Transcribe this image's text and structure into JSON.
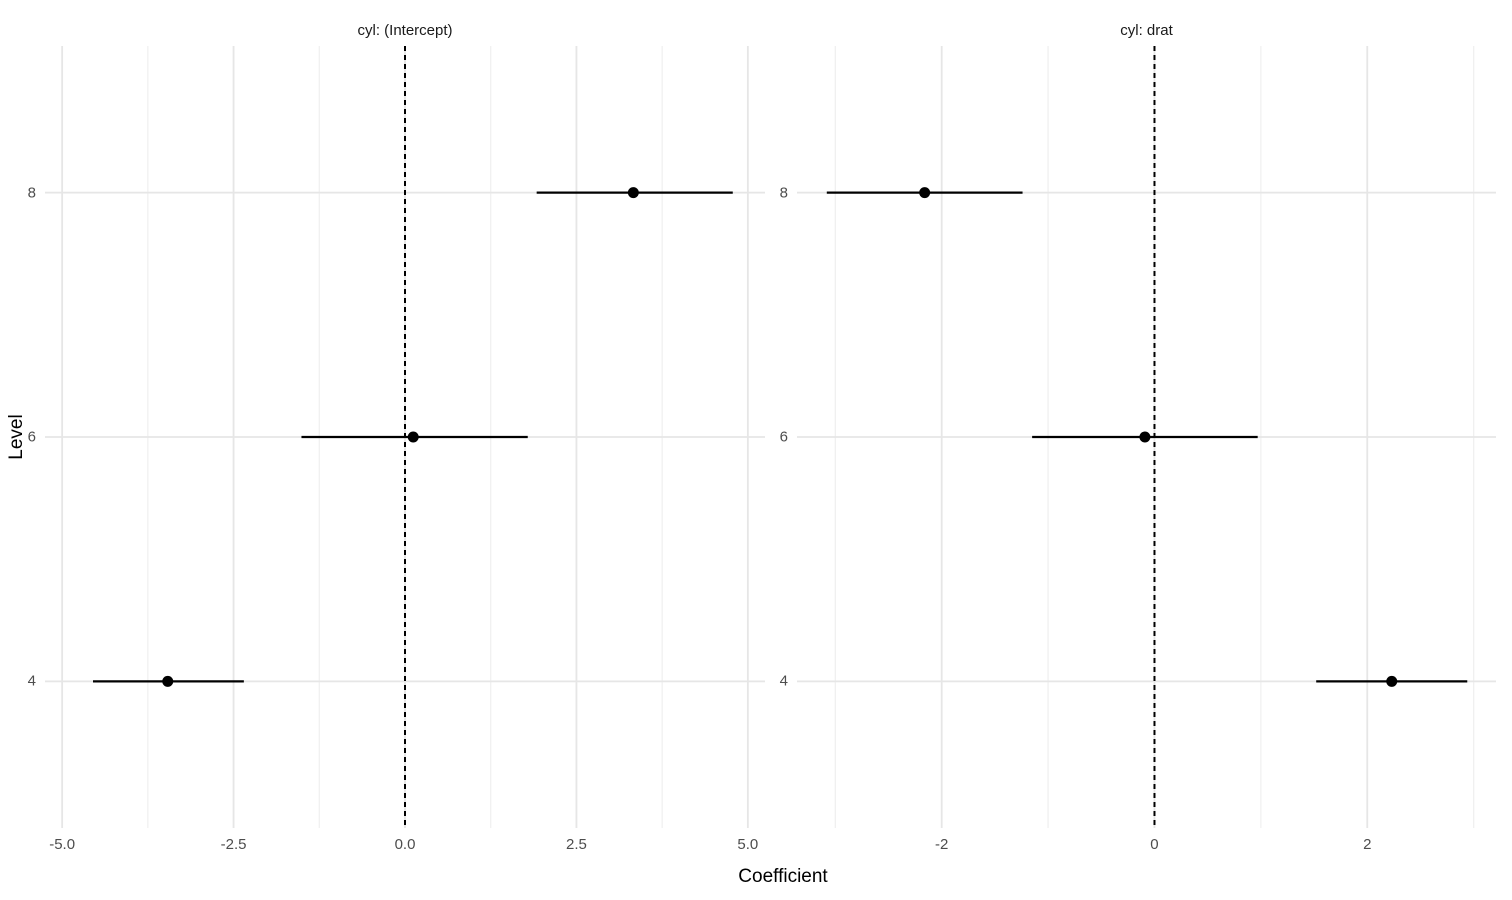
{
  "chart_data": {
    "type": "scatter",
    "subtype": "dot-and-whisker coefficient plot, faceted",
    "title": "",
    "xlabel": "Coefficient",
    "ylabel": "Level",
    "grid": "on",
    "legend": "none",
    "y_categories_top_to_bottom": [
      "8",
      "6",
      "4"
    ],
    "ylim": [
      0.4,
      3.6
    ],
    "colors": {
      "point": "#000000",
      "error_bar": "#000000",
      "zero_line": "#000000",
      "gridline_major": "#e6e6e6",
      "gridline_minor": "#f0f0f0",
      "tick_label": "#4d4d4d",
      "strip_text": "#1a1a1a",
      "axis_title": "#000000",
      "background": "#ffffff"
    },
    "panels": [
      {
        "title": "cyl: (Intercept)",
        "xlim": [
          -5.25,
          5.25
        ],
        "x_major_ticks": [
          -5.0,
          -2.5,
          0.0,
          2.5,
          5.0
        ],
        "x_tick_labels": [
          "-5.0",
          "-2.5",
          "0.0",
          "2.5",
          "5.0"
        ],
        "x_minor_ticks": [
          -3.75,
          -1.25,
          1.25,
          3.75
        ],
        "zero_line_x": 0,
        "rows": [
          {
            "level": "8",
            "y": 3,
            "estimate": 3.33,
            "ci_low": 1.92,
            "ci_high": 4.78
          },
          {
            "level": "6",
            "y": 2,
            "estimate": 0.12,
            "ci_low": -1.51,
            "ci_high": 1.79
          },
          {
            "level": "4",
            "y": 1,
            "estimate": -3.46,
            "ci_low": -4.55,
            "ci_high": -2.35
          }
        ]
      },
      {
        "title": "cyl: drat",
        "xlim": [
          -3.36,
          3.21
        ],
        "x_major_ticks": [
          -2,
          0,
          2
        ],
        "x_tick_labels": [
          "-2",
          "0",
          "2"
        ],
        "x_minor_ticks": [
          -3,
          -1,
          1,
          3
        ],
        "zero_line_x": 0,
        "rows": [
          {
            "level": "8",
            "y": 3,
            "estimate": -2.16,
            "ci_low": -3.08,
            "ci_high": -1.24
          },
          {
            "level": "6",
            "y": 2,
            "estimate": -0.09,
            "ci_low": -1.15,
            "ci_high": 0.97
          },
          {
            "level": "4",
            "y": 1,
            "estimate": 2.23,
            "ci_low": 1.52,
            "ci_high": 2.94
          }
        ]
      }
    ]
  }
}
